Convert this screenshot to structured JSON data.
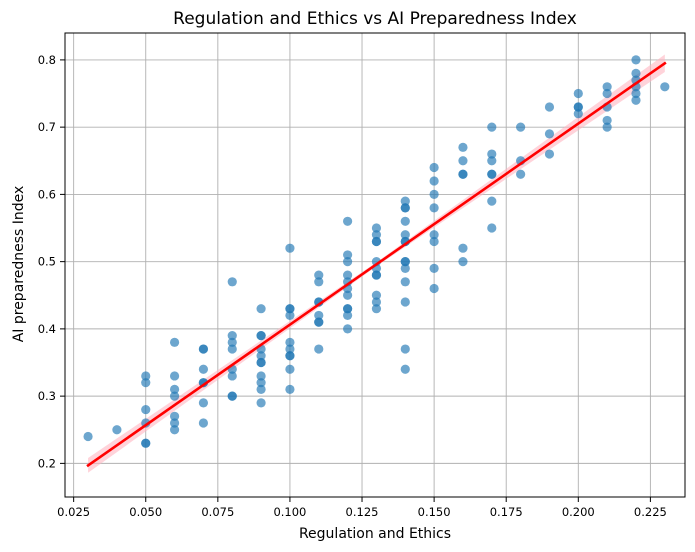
{
  "chart_data": {
    "type": "scatter",
    "title": "Regulation and Ethics vs AI Preparedness Index",
    "xlabel": "Regulation and Ethics",
    "ylabel": "AI preparedness Index",
    "xlim": [
      0.022,
      0.237
    ],
    "ylim": [
      0.15,
      0.84
    ],
    "grid": true,
    "x_ticks": [
      0.025,
      0.05,
      0.075,
      0.1,
      0.125,
      0.15,
      0.175,
      0.2,
      0.225
    ],
    "x_tick_labels": [
      "0.025",
      "0.050",
      "0.075",
      "0.100",
      "0.125",
      "0.150",
      "0.175",
      "0.200",
      "0.225"
    ],
    "y_ticks": [
      0.2,
      0.3,
      0.4,
      0.5,
      0.6,
      0.7,
      0.8
    ],
    "y_tick_labels": [
      "0.2",
      "0.3",
      "0.4",
      "0.5",
      "0.6",
      "0.7",
      "0.8"
    ],
    "point_color": "#1f77b4",
    "fit_color": "#ff0000",
    "band_color": "#ffb6c1",
    "points": [
      [
        0.03,
        0.24
      ],
      [
        0.04,
        0.25
      ],
      [
        0.05,
        0.33
      ],
      [
        0.05,
        0.32
      ],
      [
        0.05,
        0.28
      ],
      [
        0.05,
        0.26
      ],
      [
        0.05,
        0.23
      ],
      [
        0.05,
        0.23
      ],
      [
        0.06,
        0.38
      ],
      [
        0.06,
        0.33
      ],
      [
        0.06,
        0.31
      ],
      [
        0.06,
        0.3
      ],
      [
        0.06,
        0.27
      ],
      [
        0.06,
        0.26
      ],
      [
        0.06,
        0.25
      ],
      [
        0.07,
        0.37
      ],
      [
        0.07,
        0.37
      ],
      [
        0.07,
        0.34
      ],
      [
        0.07,
        0.32
      ],
      [
        0.07,
        0.32
      ],
      [
        0.07,
        0.29
      ],
      [
        0.07,
        0.26
      ],
      [
        0.08,
        0.47
      ],
      [
        0.08,
        0.39
      ],
      [
        0.08,
        0.38
      ],
      [
        0.08,
        0.37
      ],
      [
        0.08,
        0.34
      ],
      [
        0.08,
        0.33
      ],
      [
        0.08,
        0.3
      ],
      [
        0.08,
        0.3
      ],
      [
        0.09,
        0.43
      ],
      [
        0.09,
        0.39
      ],
      [
        0.09,
        0.39
      ],
      [
        0.09,
        0.37
      ],
      [
        0.09,
        0.36
      ],
      [
        0.09,
        0.35
      ],
      [
        0.09,
        0.35
      ],
      [
        0.09,
        0.33
      ],
      [
        0.09,
        0.32
      ],
      [
        0.09,
        0.31
      ],
      [
        0.09,
        0.29
      ],
      [
        0.1,
        0.52
      ],
      [
        0.1,
        0.43
      ],
      [
        0.1,
        0.43
      ],
      [
        0.1,
        0.42
      ],
      [
        0.1,
        0.38
      ],
      [
        0.1,
        0.37
      ],
      [
        0.1,
        0.36
      ],
      [
        0.1,
        0.36
      ],
      [
        0.1,
        0.34
      ],
      [
        0.1,
        0.31
      ],
      [
        0.11,
        0.48
      ],
      [
        0.11,
        0.47
      ],
      [
        0.11,
        0.44
      ],
      [
        0.11,
        0.44
      ],
      [
        0.11,
        0.42
      ],
      [
        0.11,
        0.41
      ],
      [
        0.11,
        0.41
      ],
      [
        0.11,
        0.37
      ],
      [
        0.12,
        0.56
      ],
      [
        0.12,
        0.51
      ],
      [
        0.12,
        0.5
      ],
      [
        0.12,
        0.48
      ],
      [
        0.12,
        0.47
      ],
      [
        0.12,
        0.46
      ],
      [
        0.12,
        0.45
      ],
      [
        0.12,
        0.43
      ],
      [
        0.12,
        0.43
      ],
      [
        0.12,
        0.42
      ],
      [
        0.12,
        0.4
      ],
      [
        0.13,
        0.55
      ],
      [
        0.13,
        0.54
      ],
      [
        0.13,
        0.53
      ],
      [
        0.13,
        0.53
      ],
      [
        0.13,
        0.5
      ],
      [
        0.13,
        0.49
      ],
      [
        0.13,
        0.48
      ],
      [
        0.13,
        0.48
      ],
      [
        0.13,
        0.45
      ],
      [
        0.13,
        0.44
      ],
      [
        0.13,
        0.43
      ],
      [
        0.14,
        0.59
      ],
      [
        0.14,
        0.58
      ],
      [
        0.14,
        0.58
      ],
      [
        0.14,
        0.56
      ],
      [
        0.14,
        0.54
      ],
      [
        0.14,
        0.53
      ],
      [
        0.14,
        0.53
      ],
      [
        0.14,
        0.5
      ],
      [
        0.14,
        0.5
      ],
      [
        0.14,
        0.49
      ],
      [
        0.14,
        0.47
      ],
      [
        0.14,
        0.44
      ],
      [
        0.14,
        0.37
      ],
      [
        0.14,
        0.34
      ],
      [
        0.15,
        0.64
      ],
      [
        0.15,
        0.62
      ],
      [
        0.15,
        0.6
      ],
      [
        0.15,
        0.58
      ],
      [
        0.15,
        0.54
      ],
      [
        0.15,
        0.53
      ],
      [
        0.15,
        0.49
      ],
      [
        0.15,
        0.46
      ],
      [
        0.16,
        0.67
      ],
      [
        0.16,
        0.65
      ],
      [
        0.16,
        0.63
      ],
      [
        0.16,
        0.63
      ],
      [
        0.16,
        0.52
      ],
      [
        0.16,
        0.5
      ],
      [
        0.17,
        0.7
      ],
      [
        0.17,
        0.66
      ],
      [
        0.17,
        0.65
      ],
      [
        0.17,
        0.63
      ],
      [
        0.17,
        0.63
      ],
      [
        0.17,
        0.59
      ],
      [
        0.17,
        0.55
      ],
      [
        0.18,
        0.7
      ],
      [
        0.18,
        0.65
      ],
      [
        0.18,
        0.63
      ],
      [
        0.19,
        0.73
      ],
      [
        0.19,
        0.69
      ],
      [
        0.19,
        0.66
      ],
      [
        0.2,
        0.75
      ],
      [
        0.2,
        0.73
      ],
      [
        0.2,
        0.73
      ],
      [
        0.2,
        0.72
      ],
      [
        0.21,
        0.76
      ],
      [
        0.21,
        0.75
      ],
      [
        0.21,
        0.73
      ],
      [
        0.21,
        0.71
      ],
      [
        0.21,
        0.7
      ],
      [
        0.22,
        0.8
      ],
      [
        0.22,
        0.78
      ],
      [
        0.22,
        0.77
      ],
      [
        0.22,
        0.76
      ],
      [
        0.22,
        0.75
      ],
      [
        0.22,
        0.74
      ],
      [
        0.23,
        0.76
      ]
    ],
    "fit_line": {
      "x": [
        0.03,
        0.23
      ],
      "y": [
        0.197,
        0.795
      ]
    },
    "confidence_band": {
      "x": [
        0.03,
        0.13,
        0.23
      ],
      "lower": [
        0.186,
        0.493,
        0.782
      ],
      "upper": [
        0.208,
        0.499,
        0.808
      ]
    }
  }
}
